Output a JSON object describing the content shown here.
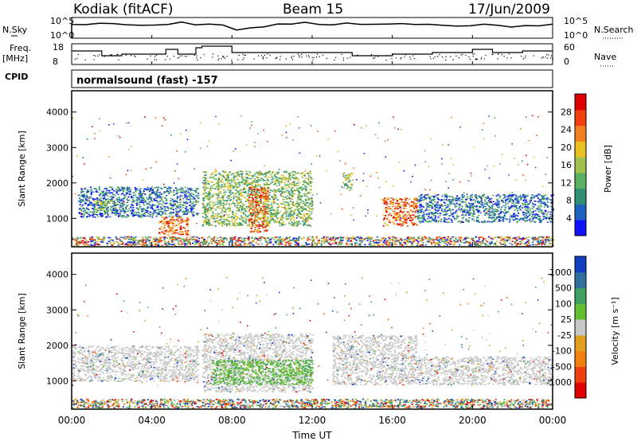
{
  "header": {
    "title": "Kodiak (fitACF)",
    "beam": "Beam 15",
    "date": "17/Jun/2009"
  },
  "time_panels": {
    "nsky_label": "N.Sky",
    "nsearch_label": "N.Search",
    "freq_label": "Freq.",
    "freq_unit": "[MHz]",
    "nave_label": "Nave",
    "cpid_label": "CPID",
    "cpid_value": "normalsound (fast) -157",
    "left_ticks_top": [
      "10^5",
      "10^0"
    ],
    "right_ticks_top": [
      "10^5",
      "10^0"
    ],
    "left_ticks_freq": [
      "18",
      "8"
    ],
    "right_ticks_nave": [
      "60",
      "0"
    ]
  },
  "chart_data": [
    {
      "type": "heatmap",
      "name": "power",
      "ylabel": "Slant Range [km]",
      "ylim": [
        200,
        4600
      ],
      "yticks": [
        1000,
        2000,
        3000,
        4000
      ],
      "colorbar_label": "Power [dB]",
      "colorbar_ticks": [
        4,
        8,
        12,
        16,
        20,
        24,
        28
      ],
      "colors": [
        "#1010ff",
        "#2060c0",
        "#2f8f72",
        "#58b060",
        "#a0c050",
        "#e8c020",
        "#f08020",
        "#f04010",
        "#e00000"
      ],
      "scatter_regions": [
        {
          "t0": 0.3,
          "t1": 6.3,
          "r0": 1050,
          "r1": 1900,
          "level": "low"
        },
        {
          "t0": 1.1,
          "t1": 2.2,
          "r0": 1200,
          "r1": 1550,
          "level": "mid"
        },
        {
          "t0": 4.3,
          "t1": 5.8,
          "r0": 550,
          "r1": 1050,
          "level": "high"
        },
        {
          "t0": 6.5,
          "t1": 12.0,
          "r0": 800,
          "r1": 2350,
          "level": "mid"
        },
        {
          "t0": 8.8,
          "t1": 9.8,
          "r0": 600,
          "r1": 1900,
          "level": "high"
        },
        {
          "t0": 13.5,
          "t1": 14.0,
          "r0": 1800,
          "r1": 2300,
          "level": "mid"
        },
        {
          "t0": 15.5,
          "t1": 17.2,
          "r0": 800,
          "r1": 1600,
          "level": "high"
        },
        {
          "t0": 17.2,
          "t1": 24.0,
          "r0": 900,
          "r1": 1700,
          "level": "low"
        },
        {
          "t0": 0.0,
          "t1": 24.0,
          "r0": 250,
          "r1": 500,
          "level": "ground"
        }
      ]
    },
    {
      "type": "heatmap",
      "name": "velocity",
      "ylabel": "Slant Range [km]",
      "xlabel": "Time UT",
      "ylim": [
        200,
        4600
      ],
      "yticks": [
        1000,
        2000,
        3000,
        4000
      ],
      "xlim": [
        0,
        24
      ],
      "xticks": [
        "00:00",
        "04:00",
        "08:00",
        "12:00",
        "16:00",
        "20:00",
        "00:00"
      ],
      "colorbar_label": "Velocity [m s⁻¹]",
      "colorbar_ticks": [
        1000,
        500,
        100,
        25,
        -25,
        -100,
        -500,
        -1000
      ],
      "colors": [
        "#1040c0",
        "#3070a0",
        "#40a060",
        "#60c030",
        "#c8c8c8",
        "#e0a020",
        "#f08010",
        "#f04010",
        "#e00000"
      ],
      "scatter_regions": [
        {
          "t0": 0.0,
          "t1": 6.3,
          "r0": 1000,
          "r1": 2000,
          "level": "grey"
        },
        {
          "t0": 6.5,
          "t1": 12.0,
          "r0": 700,
          "r1": 2350,
          "level": "grey"
        },
        {
          "t0": 7.0,
          "t1": 12.0,
          "r0": 900,
          "r1": 1600,
          "level": "green"
        },
        {
          "t0": 13.0,
          "t1": 17.2,
          "r0": 900,
          "r1": 2300,
          "level": "grey"
        },
        {
          "t0": 17.2,
          "t1": 24.0,
          "r0": 900,
          "r1": 1700,
          "level": "grey"
        },
        {
          "t0": 0.0,
          "t1": 24.0,
          "r0": 250,
          "r1": 500,
          "level": "ground"
        }
      ]
    }
  ]
}
